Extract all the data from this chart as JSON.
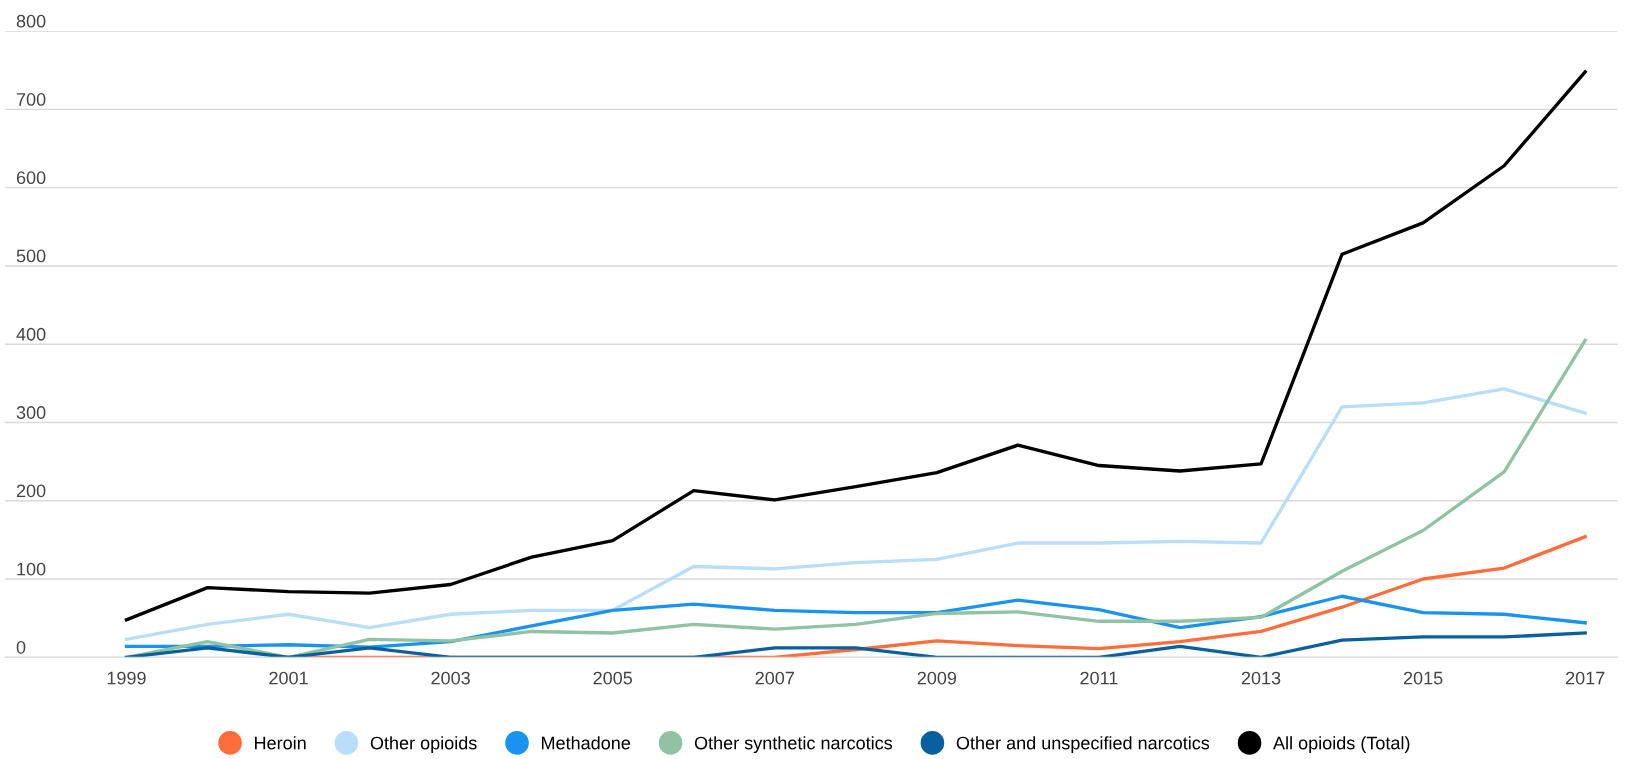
{
  "chart_data": {
    "type": "line",
    "x": [
      1999,
      2000,
      2001,
      2002,
      2003,
      2004,
      2005,
      2006,
      2007,
      2008,
      2009,
      2010,
      2011,
      2012,
      2013,
      2014,
      2015,
      2016,
      2017
    ],
    "series": [
      {
        "name": "Heroin",
        "color": "#ff6d3a",
        "values": [
          null,
          null,
          0,
          0,
          0,
          0,
          0,
          0,
          0,
          10,
          21,
          15,
          11,
          20,
          33,
          64,
          100,
          114,
          154
        ]
      },
      {
        "name": "Other opioids",
        "color": "#b8def9",
        "values": [
          23,
          42,
          55,
          38,
          55,
          60,
          60,
          116,
          113,
          121,
          125,
          146,
          146,
          148,
          146,
          320,
          325,
          343,
          312
        ]
      },
      {
        "name": "Methadone",
        "color": "#1a93f0",
        "values": [
          14,
          14,
          16,
          13,
          20,
          40,
          60,
          68,
          60,
          57,
          57,
          73,
          61,
          38,
          52,
          78,
          57,
          55,
          44
        ]
      },
      {
        "name": "Other synthetic narcotics",
        "color": "#8fc3a3",
        "values": [
          0,
          20,
          0,
          23,
          21,
          33,
          31,
          42,
          36,
          42,
          56,
          58,
          46,
          46,
          51,
          110,
          162,
          237,
          405
        ]
      },
      {
        "name": "Other and unspecified narcotics",
        "color": "#0a5f9e",
        "values": [
          0,
          12,
          0,
          12,
          0,
          0,
          0,
          0,
          12,
          12,
          0,
          0,
          0,
          14,
          0,
          22,
          26,
          26,
          31
        ]
      },
      {
        "name": "All opioids (Total)",
        "color": "#000000",
        "values": [
          48,
          89,
          84,
          82,
          93,
          128,
          149,
          213,
          201,
          218,
          236,
          271,
          245,
          238,
          247,
          515,
          555,
          628,
          748
        ]
      }
    ],
    "xlim": [
      1997.5,
      2017.4
    ],
    "xticks": [
      1999,
      2001,
      2003,
      2005,
      2007,
      2009,
      2011,
      2013,
      2015,
      2017
    ],
    "ylim": [
      0,
      800
    ],
    "yticks": [
      0,
      100,
      200,
      300,
      400,
      500,
      600,
      700,
      800
    ],
    "grid": "y",
    "legend": "bottom",
    "marker": "none",
    "line_style": "solid"
  }
}
